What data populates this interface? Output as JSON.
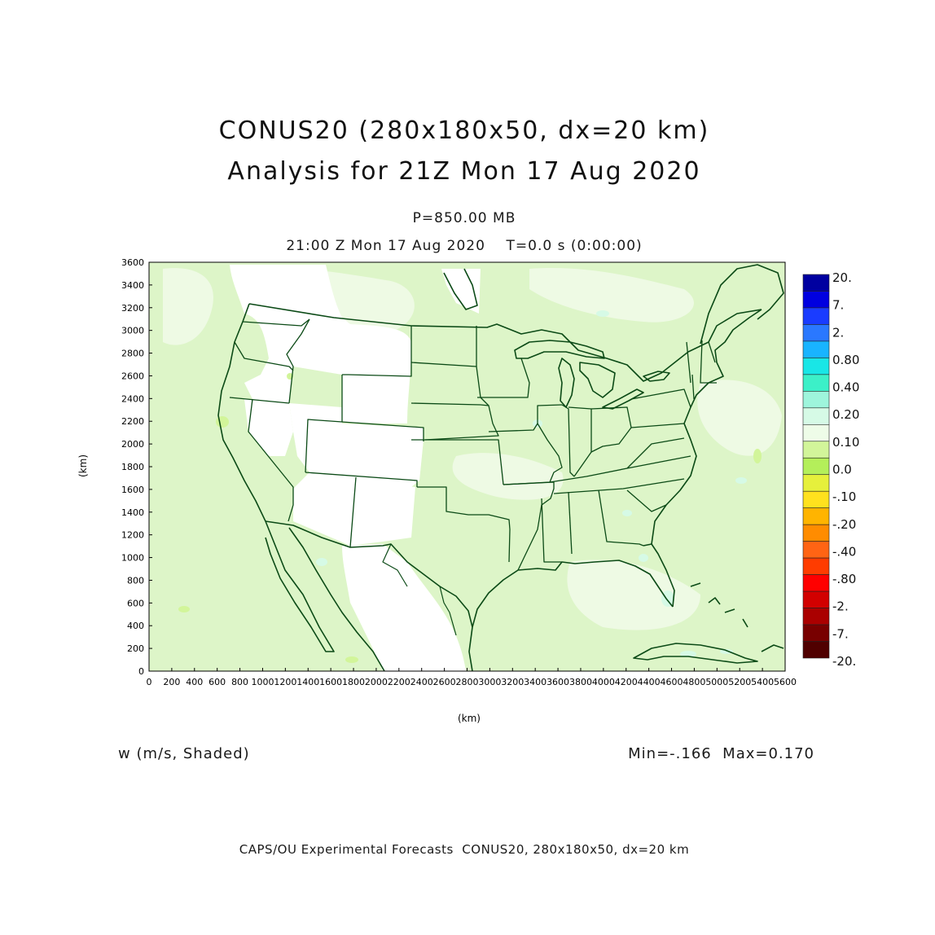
{
  "titles": {
    "line1": "CONUS20 (280x180x50, dx=20 km)",
    "line2": "Analysis for 21Z Mon 17 Aug 2020",
    "level": "P=850.00 MB",
    "time": "21:00 Z Mon 17 Aug 2020    T=0.0 s (0:00:00)"
  },
  "axes": {
    "xlabel": "(km)",
    "ylabel": "(km)",
    "x_ticks": [
      "0",
      "200",
      "400",
      "600",
      "800",
      "1000",
      "1200",
      "1400",
      "1600",
      "1800",
      "2000",
      "2200",
      "2400",
      "2600",
      "2800",
      "3000",
      "3200",
      "3400",
      "3600",
      "3800",
      "4000",
      "4200",
      "4400",
      "4600",
      "4800",
      "5000",
      "5200",
      "5400",
      "5600"
    ],
    "y_ticks": [
      "0",
      "200",
      "400",
      "600",
      "800",
      "1000",
      "1200",
      "1400",
      "1600",
      "1800",
      "2000",
      "2200",
      "2400",
      "2600",
      "2800",
      "3000",
      "3200",
      "3400",
      "3600"
    ],
    "x_range": [
      0,
      5600
    ],
    "y_range": [
      0,
      3600
    ]
  },
  "colorbar": {
    "labels": [
      "20.",
      "7.",
      "2.",
      "0.80",
      "0.40",
      "0.20",
      "0.10",
      "0.0",
      "-.10",
      "-.20",
      "-.40",
      "-.80",
      "-2.",
      "-7.",
      "-20."
    ],
    "colors": [
      "#0000a0",
      "#0000e0",
      "#1a3cff",
      "#2a78ff",
      "#19b4ff",
      "#19e6e6",
      "#3cf0c8",
      "#9ef5dc",
      "#d6fae6",
      "#eefce8",
      "#d2f59a",
      "#b4ef5a",
      "#e6f03c",
      "#ffe11e",
      "#ffb400",
      "#ff8c00",
      "#ff6414",
      "#ff3c00",
      "#ff0000",
      "#d20000",
      "#aa0000",
      "#780000",
      "#500000"
    ]
  },
  "field": {
    "variable": "w (m/s, Shaded)",
    "minmax": "Min=-.166  Max=0.170"
  },
  "footer": "CAPS/OU Experimental Forecasts  CONUS20, 280x180x50, dx=20 km",
  "map_colors": {
    "background_field": "#ddf5c8",
    "light_field": "#eefae4",
    "white_field": "#ffffff",
    "boundary_lines": "#0b4a16"
  }
}
